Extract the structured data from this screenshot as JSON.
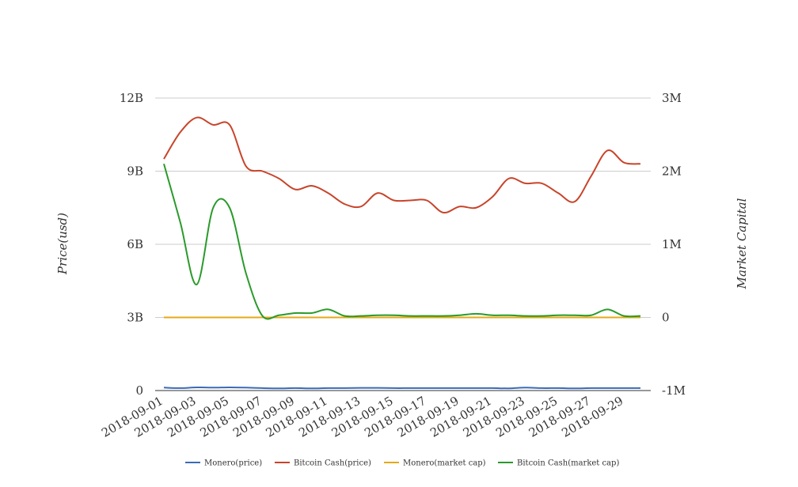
{
  "chart_data": {
    "type": "line",
    "title": "",
    "xlabel": "",
    "ylabel": "Price(usd)",
    "y2label": "Market Capital",
    "grid": true,
    "legend_position": "bottom",
    "x": [
      "2018-09-01",
      "2018-09-02",
      "2018-09-03",
      "2018-09-04",
      "2018-09-05",
      "2018-09-06",
      "2018-09-07",
      "2018-09-08",
      "2018-09-09",
      "2018-09-10",
      "2018-09-11",
      "2018-09-12",
      "2018-09-13",
      "2018-09-14",
      "2018-09-15",
      "2018-09-16",
      "2018-09-17",
      "2018-09-18",
      "2018-09-19",
      "2018-09-20",
      "2018-09-21",
      "2018-09-22",
      "2018-09-23",
      "2018-09-24",
      "2018-09-25",
      "2018-09-26",
      "2018-09-27",
      "2018-09-28",
      "2018-09-29",
      "2018-09-30"
    ],
    "x_tick_labels": [
      "2018-09-01",
      "2018-09-03",
      "2018-09-05",
      "2018-09-07",
      "2018-09-09",
      "2018-09-11",
      "2018-09-13",
      "2018-09-15",
      "2018-09-17",
      "2018-09-19",
      "2018-09-21",
      "2018-09-23",
      "2018-09-25",
      "2018-09-27",
      "2018-09-29"
    ],
    "y_left": {
      "ticks": [
        "0",
        "3B",
        "6B",
        "9B",
        "12B"
      ],
      "range": [
        0,
        12000000000
      ]
    },
    "y_right": {
      "ticks": [
        "-1M",
        "0",
        "1M",
        "2M",
        "3M"
      ],
      "range": [
        -1000000,
        3000000
      ]
    },
    "series": [
      {
        "name": "Monero(price)",
        "axis": "left",
        "color": "#3a6bb5",
        "values": [
          120000000.0,
          100000000.0,
          130000000.0,
          120000000.0,
          130000000.0,
          120000000.0,
          100000000.0,
          90000000.0,
          100000000.0,
          90000000.0,
          100000000.0,
          100000000.0,
          110000000.0,
          110000000.0,
          100000000.0,
          100000000.0,
          100000000.0,
          100000000.0,
          100000000.0,
          100000000.0,
          100000000.0,
          90000000.0,
          120000000.0,
          100000000.0,
          100000000.0,
          90000000.0,
          100000000.0,
          100000000.0,
          100000000.0,
          100000000.0
        ]
      },
      {
        "name": "Bitcoin Cash(price)",
        "axis": "left",
        "color": "#c8442a",
        "values": [
          9500000000.0,
          10600000000.0,
          11200000000.0,
          10900000000.0,
          10900000000.0,
          9200000000.0,
          9000000000.0,
          8700000000.0,
          8250000000.0,
          8400000000.0,
          8100000000.0,
          7650000000.0,
          7550000000.0,
          8100000000.0,
          7800000000.0,
          7800000000.0,
          7800000000.0,
          7300000000.0,
          7550000000.0,
          7500000000.0,
          7950000000.0,
          8700000000.0,
          8500000000.0,
          8500000000.0,
          8100000000.0,
          7750000000.0,
          8800000000.0,
          9850000000.0,
          9350000000.0,
          9300000000.0
        ]
      },
      {
        "name": "Monero(market cap)",
        "axis": "right",
        "color": "#e6a817",
        "values": [
          0,
          0,
          0,
          0,
          0,
          0,
          0,
          0,
          0,
          0,
          0,
          0,
          0,
          0,
          0,
          0,
          0,
          0,
          0,
          0,
          0,
          0,
          0,
          0,
          0,
          0,
          0,
          0,
          0,
          0
        ]
      },
      {
        "name": "Bitcoin Cash(market cap)",
        "axis": "right",
        "color": "#2a9a2a",
        "values": [
          2100000,
          1300000,
          450000,
          1500000,
          1500000,
          600000,
          20000,
          30000,
          60000,
          60000,
          110000,
          20000,
          20000,
          30000,
          30000,
          20000,
          20000,
          20000,
          30000,
          50000,
          30000,
          30000,
          20000,
          20000,
          30000,
          30000,
          30000,
          110000,
          20000,
          20000
        ]
      }
    ]
  }
}
